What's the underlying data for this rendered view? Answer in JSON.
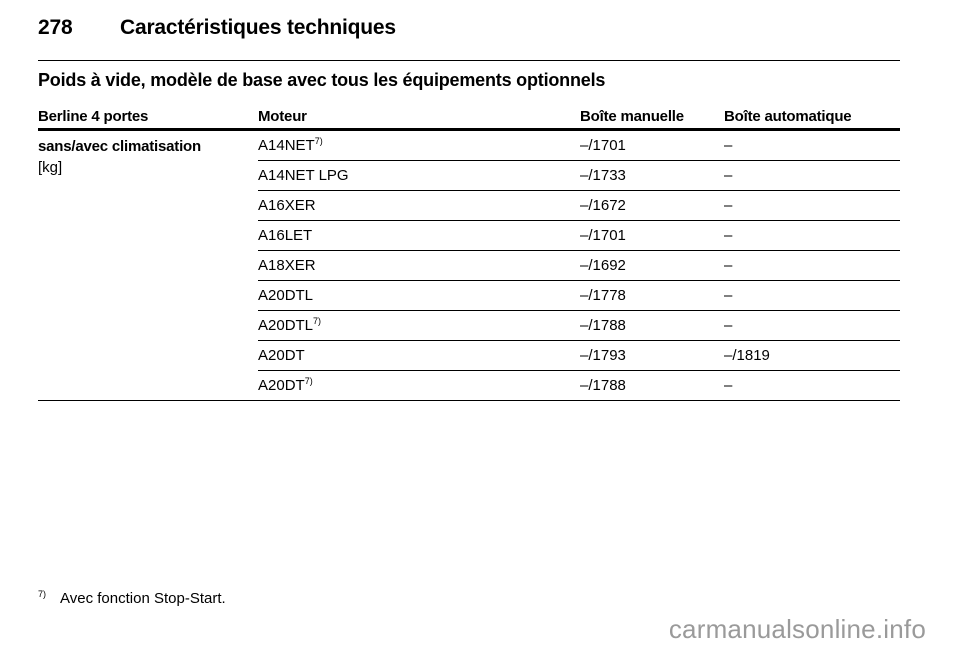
{
  "header": {
    "page_number": "278",
    "title": "Caractéristiques techniques"
  },
  "section": {
    "subtitle": "Poids à vide, modèle de base avec tous les équipements optionnels"
  },
  "table": {
    "columns": [
      "Berline 4 portes",
      "Moteur",
      "Boîte manuelle",
      "Boîte automatique"
    ],
    "row_label_line1": "sans/avec climatisation",
    "row_label_line2": "[kg]",
    "rows": [
      {
        "engine": "A14NET",
        "note": "7)",
        "manual": "–/1701",
        "auto": "–"
      },
      {
        "engine": "A14NET LPG",
        "note": "",
        "manual": "–/1733",
        "auto": "–"
      },
      {
        "engine": "A16XER",
        "note": "",
        "manual": "–/1672",
        "auto": "–"
      },
      {
        "engine": "A16LET",
        "note": "",
        "manual": "–/1701",
        "auto": "–"
      },
      {
        "engine": "A18XER",
        "note": "",
        "manual": "–/1692",
        "auto": "–"
      },
      {
        "engine": "A20DTL",
        "note": "",
        "manual": "–/1778",
        "auto": "–"
      },
      {
        "engine": "A20DTL",
        "note": "7)",
        "manual": "–/1788",
        "auto": "–"
      },
      {
        "engine": "A20DT",
        "note": "",
        "manual": "–/1793",
        "auto": "–/1819"
      },
      {
        "engine": "A20DT",
        "note": "7)",
        "manual": "–/1788",
        "auto": "–"
      }
    ]
  },
  "footnote": {
    "marker": "7)",
    "text": "Avec fonction Stop-Start."
  },
  "watermark": "carmanualsonline.info"
}
